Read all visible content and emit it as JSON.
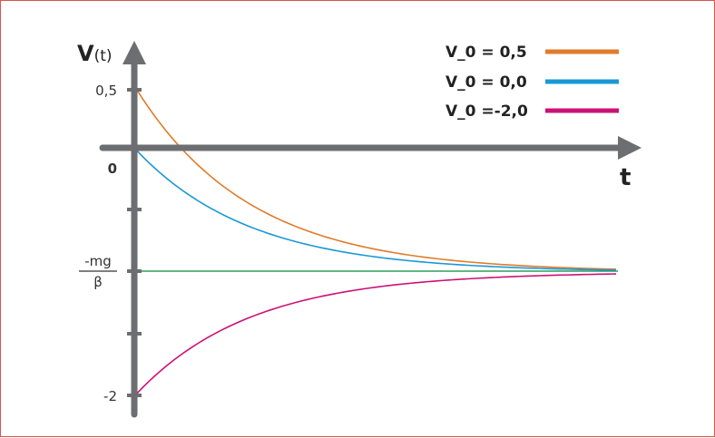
{
  "chart_data": {
    "type": "line",
    "ylabel_main": "V",
    "ylabel_arg": "(t)",
    "xlabel": "t",
    "y_ticks": [
      {
        "label": "0,5",
        "value": 0.5
      },
      {
        "label": "0",
        "value": 0.0
      },
      {
        "label": "-2",
        "value": -2.0
      }
    ],
    "terminal_label": {
      "numerator": "-mg",
      "denominator": "β"
    },
    "terminal_value": -1.0,
    "ylim": [
      -2.2,
      1.2
    ],
    "series": [
      {
        "name": "V_0 = 0,5",
        "color": "#e07b2a",
        "v0": 0.5
      },
      {
        "name": "V_0 = 0,0",
        "color": "#1a98d5",
        "v0": 0.0
      },
      {
        "name": "V_0 =-2,0",
        "color": "#cc1177",
        "v0": -2.0
      }
    ],
    "terminal_line": {
      "color": "#2e9d5e"
    },
    "axis_color": "#6d6e71"
  }
}
